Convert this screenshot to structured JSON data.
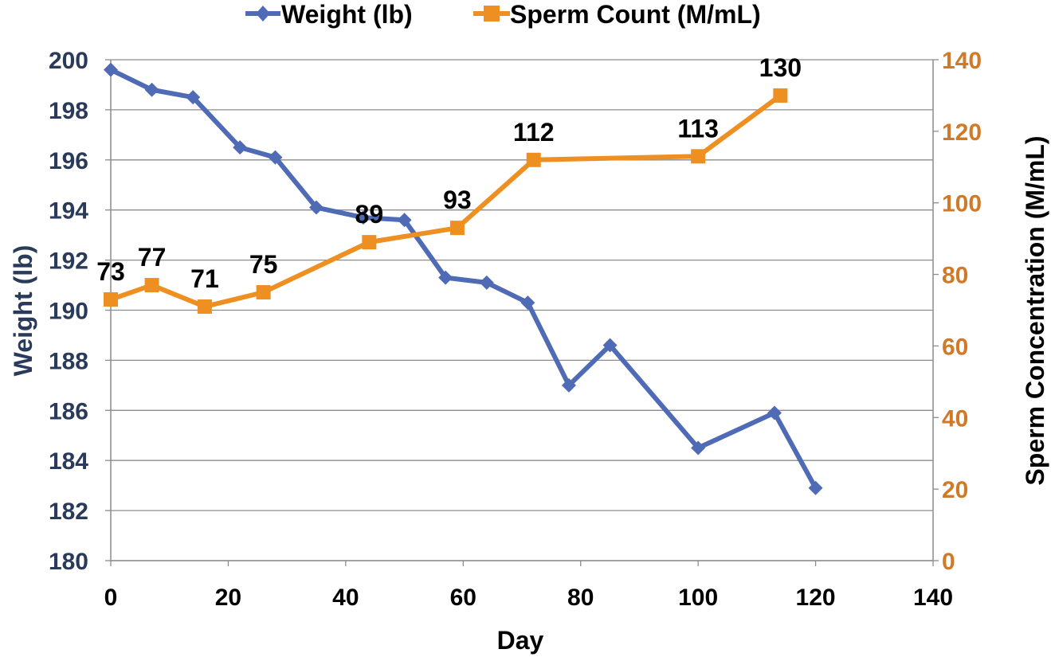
{
  "chart_data": {
    "type": "line",
    "xlabel": "Day",
    "ylabel_left": "Weight (lb)",
    "ylabel_right": "Sperm Concentration (M/mL)",
    "xlim": [
      0,
      140
    ],
    "x_ticks": [
      0,
      20,
      40,
      60,
      80,
      100,
      120,
      140
    ],
    "ylim_left": [
      180,
      200
    ],
    "y_ticks_left": [
      180,
      182,
      184,
      186,
      188,
      190,
      192,
      194,
      196,
      198,
      200
    ],
    "ylim_right": [
      0,
      140
    ],
    "y_ticks_right": [
      0,
      20,
      40,
      60,
      80,
      100,
      120,
      140
    ],
    "grid": "horizontal",
    "legend_position": "top",
    "colors": {
      "weight": "#4f6bb6",
      "sperm": "#ee8f22",
      "left_axis": "#2a3a5a",
      "right_axis": "#d07a28"
    },
    "series": [
      {
        "name": "Weight (lb)",
        "axis": "left",
        "marker": "diamond",
        "x": [
          0,
          7,
          14,
          22,
          28,
          35,
          43,
          50,
          57,
          64,
          71,
          78,
          85,
          100,
          113,
          120
        ],
        "values": [
          199.6,
          198.8,
          198.5,
          196.5,
          196.1,
          194.1,
          193.7,
          193.6,
          191.3,
          191.1,
          190.3,
          187.0,
          188.6,
          184.5,
          185.9,
          182.9
        ]
      },
      {
        "name": "Sperm Count (M/mL)",
        "axis": "right",
        "marker": "square",
        "x": [
          0,
          7,
          16,
          26,
          44,
          59,
          72,
          100,
          114
        ],
        "values": [
          73,
          77,
          71,
          75,
          89,
          93,
          112,
          113,
          130
        ],
        "labels": [
          "73",
          "77",
          "71",
          "75",
          "89",
          "93",
          "112",
          "113",
          "130"
        ]
      }
    ]
  }
}
